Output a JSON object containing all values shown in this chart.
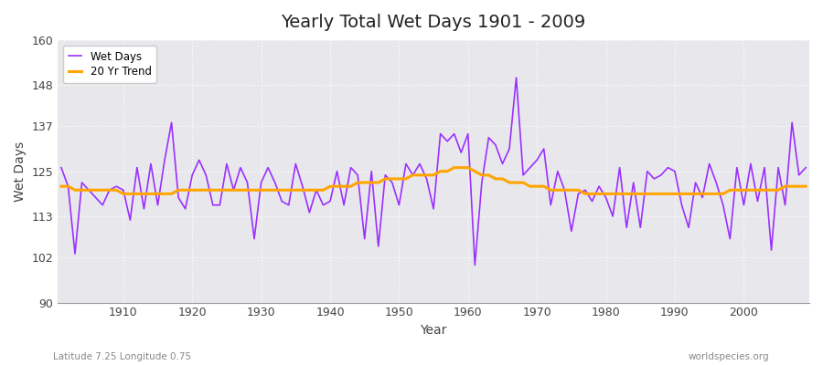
{
  "title": "Yearly Total Wet Days 1901 - 2009",
  "xlabel": "Year",
  "ylabel": "Wet Days",
  "subtitle": "Latitude 7.25 Longitude 0.75",
  "watermark": "worldspecies.org",
  "wet_days_color": "#9B30FF",
  "trend_color": "#FFA500",
  "background_color": "#FFFFFF",
  "plot_bg_color": "#E8E8EC",
  "ylim": [
    90,
    160
  ],
  "yticks": [
    90,
    102,
    113,
    125,
    137,
    148,
    160
  ],
  "xticks": [
    1910,
    1920,
    1930,
    1940,
    1950,
    1960,
    1970,
    1980,
    1990,
    2000
  ],
  "years": [
    1901,
    1902,
    1903,
    1904,
    1905,
    1906,
    1907,
    1908,
    1909,
    1910,
    1911,
    1912,
    1913,
    1914,
    1915,
    1916,
    1917,
    1918,
    1919,
    1920,
    1921,
    1922,
    1923,
    1924,
    1925,
    1926,
    1927,
    1928,
    1929,
    1930,
    1931,
    1932,
    1933,
    1934,
    1935,
    1936,
    1937,
    1938,
    1939,
    1940,
    1941,
    1942,
    1943,
    1944,
    1945,
    1946,
    1947,
    1948,
    1949,
    1950,
    1951,
    1952,
    1953,
    1954,
    1955,
    1956,
    1957,
    1958,
    1959,
    1960,
    1961,
    1962,
    1963,
    1964,
    1965,
    1966,
    1967,
    1968,
    1969,
    1970,
    1971,
    1972,
    1973,
    1974,
    1975,
    1976,
    1977,
    1978,
    1979,
    1980,
    1981,
    1982,
    1983,
    1984,
    1985,
    1986,
    1987,
    1988,
    1989,
    1990,
    1991,
    1992,
    1993,
    1994,
    1995,
    1996,
    1997,
    1998,
    1999,
    2000,
    2001,
    2002,
    2003,
    2004,
    2005,
    2006,
    2007,
    2008,
    2009
  ],
  "wet_days": [
    126,
    121,
    103,
    122,
    120,
    118,
    116,
    120,
    121,
    120,
    112,
    126,
    115,
    127,
    116,
    128,
    138,
    118,
    115,
    124,
    128,
    124,
    116,
    116,
    127,
    120,
    126,
    122,
    107,
    122,
    126,
    122,
    117,
    116,
    127,
    121,
    114,
    120,
    116,
    117,
    125,
    116,
    126,
    124,
    107,
    125,
    105,
    124,
    122,
    116,
    127,
    124,
    127,
    123,
    115,
    135,
    133,
    135,
    130,
    135,
    100,
    122,
    134,
    132,
    127,
    131,
    150,
    124,
    126,
    128,
    131,
    116,
    125,
    120,
    109,
    119,
    120,
    117,
    121,
    118,
    113,
    126,
    110,
    122,
    110,
    125,
    123,
    124,
    126,
    125,
    116,
    110,
    122,
    118,
    127,
    122,
    116,
    107,
    126,
    116,
    127,
    117,
    126,
    104,
    126,
    116,
    138,
    124,
    126
  ],
  "trend": [
    121,
    121,
    120,
    120,
    120,
    120,
    120,
    120,
    120,
    119,
    119,
    119,
    119,
    119,
    119,
    119,
    119,
    120,
    120,
    120,
    120,
    120,
    120,
    120,
    120,
    120,
    120,
    120,
    120,
    120,
    120,
    120,
    120,
    120,
    120,
    120,
    120,
    120,
    120,
    121,
    121,
    121,
    121,
    122,
    122,
    122,
    122,
    123,
    123,
    123,
    123,
    124,
    124,
    124,
    124,
    125,
    125,
    126,
    126,
    126,
    125,
    124,
    124,
    123,
    123,
    122,
    122,
    122,
    121,
    121,
    121,
    120,
    120,
    120,
    120,
    120,
    119,
    119,
    119,
    119,
    119,
    119,
    119,
    119,
    119,
    119,
    119,
    119,
    119,
    119,
    119,
    119,
    119,
    119,
    119,
    119,
    119,
    120,
    120,
    120,
    120,
    120,
    120,
    120,
    120,
    121,
    121,
    121,
    121
  ]
}
